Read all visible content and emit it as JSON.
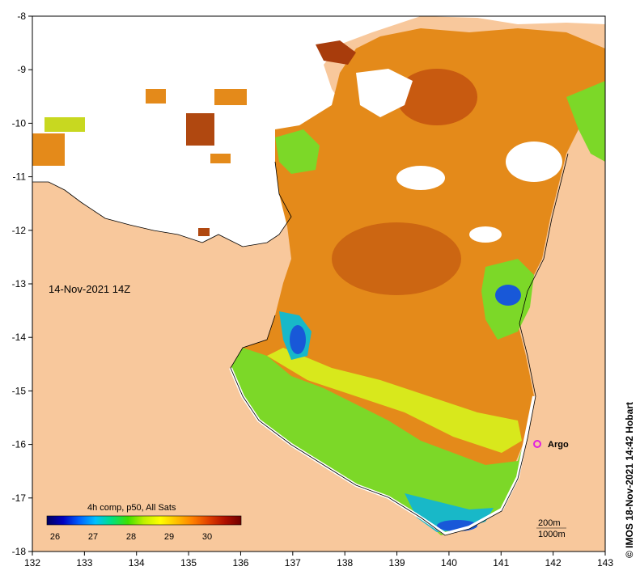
{
  "map": {
    "date_label": "14-Nov-2021 14Z",
    "colorbar_title": "4h comp, p50, All Sats",
    "colorbar_ticks": [
      "26",
      "27",
      "28",
      "29",
      "30"
    ],
    "colorbar_colors": [
      "#000060",
      "#0000c0",
      "#0060ff",
      "#00c0ff",
      "#00e080",
      "#40e000",
      "#c0f000",
      "#ffff00",
      "#ffc000",
      "#ff8000",
      "#e04000",
      "#b01000",
      "#700000"
    ],
    "x_ticks": [
      "132",
      "133",
      "134",
      "135",
      "136",
      "137",
      "138",
      "139",
      "140",
      "141",
      "142",
      "143"
    ],
    "y_ticks": [
      "-8",
      "-9",
      "-10",
      "-11",
      "-12",
      "-13",
      "-14",
      "-15",
      "-16",
      "-17",
      "-18"
    ],
    "argo_label": "Argo",
    "depth_labels": [
      "200m",
      "1000m"
    ],
    "credit": "© IMOS 18-Nov-2021 14:42 Hobart",
    "colors": {
      "land": "#f8c89c",
      "sea_warm": "#e48a1a",
      "sea_hot": "#c0580c",
      "sea_green": "#7cd828",
      "sea_yellow": "#d8e81c",
      "sea_cyan": "#18b8c8",
      "sea_blue": "#1858d8",
      "argo": "#e020e0"
    }
  }
}
